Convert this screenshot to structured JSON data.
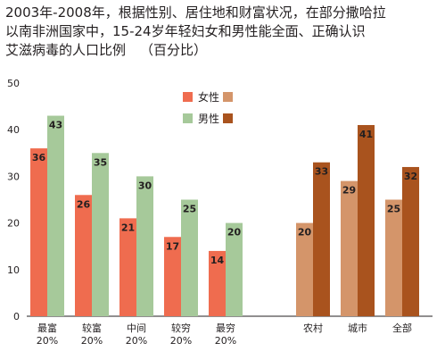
{
  "title_lines": [
    "2003年-2008年，根据性别、居住地和财富状况，在部分撒哈拉",
    "以南非洲国家中，15-24岁年轻妇女和男性能全面、正确认识",
    "艾滋病毒的人口比例"
  ],
  "title_unit": "（百分比）",
  "chart_data": [
    {
      "type": "bar",
      "categories": [
        [
          "最富",
          "20%"
        ],
        [
          "较富",
          "20%"
        ],
        [
          "中间",
          "20%"
        ],
        [
          "较穷",
          "20%"
        ],
        [
          "最穷",
          "20%"
        ]
      ],
      "series": [
        {
          "name": "女性",
          "color": "#ef6c4f",
          "values": [
            36,
            26,
            21,
            17,
            14
          ]
        },
        {
          "name": "男性",
          "color": "#a6c99a",
          "values": [
            43,
            35,
            30,
            25,
            20
          ]
        }
      ],
      "ylim": [
        0,
        50
      ],
      "yticks": [
        0,
        10,
        20,
        30,
        40,
        50
      ],
      "grid": false,
      "legend": "top-right"
    },
    {
      "type": "bar",
      "categories": [
        [
          "农村"
        ],
        [
          "城市"
        ],
        [
          "全部"
        ]
      ],
      "series": [
        {
          "name": "女性",
          "color": "#d4956a",
          "values": [
            20,
            29,
            25
          ]
        },
        {
          "name": "男性",
          "color": "#a9531e",
          "values": [
            33,
            41,
            32
          ]
        }
      ],
      "ylim": [
        0,
        50
      ],
      "grid": false,
      "legend": "top"
    }
  ]
}
